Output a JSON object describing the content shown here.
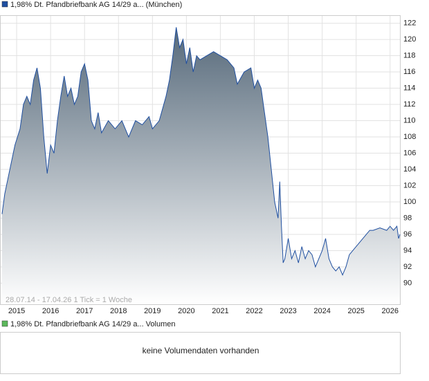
{
  "chart_data": [
    {
      "type": "area",
      "note": "28.07.14 - 17.04.26   1 Tick = 1 Woche",
      "x": [
        2014.57,
        2014.65,
        2014.8,
        2014.95,
        2015.1,
        2015.2,
        2015.3,
        2015.4,
        2015.5,
        2015.6,
        2015.7,
        2015.8,
        2015.9,
        2016.0,
        2016.1,
        2016.2,
        2016.3,
        2016.4,
        2016.5,
        2016.6,
        2016.7,
        2016.8,
        2016.9,
        2017.0,
        2017.1,
        2017.2,
        2017.3,
        2017.4,
        2017.5,
        2017.7,
        2017.9,
        2018.1,
        2018.3,
        2018.5,
        2018.7,
        2018.9,
        2019.0,
        2019.2,
        2019.4,
        2019.5,
        2019.6,
        2019.7,
        2019.8,
        2019.9,
        2020.0,
        2020.1,
        2020.2,
        2020.3,
        2020.4,
        2020.6,
        2020.8,
        2021.0,
        2021.2,
        2021.4,
        2021.5,
        2021.7,
        2021.9,
        2022.0,
        2022.1,
        2022.2,
        2022.3,
        2022.4,
        2022.5,
        2022.6,
        2022.7,
        2022.75,
        2022.8,
        2022.85,
        2022.9,
        2023.0,
        2023.1,
        2023.2,
        2023.3,
        2023.4,
        2023.5,
        2023.6,
        2023.7,
        2023.8,
        2023.9,
        2024.0,
        2024.1,
        2024.2,
        2024.3,
        2024.4,
        2024.5,
        2024.6,
        2024.7,
        2024.8,
        2024.9,
        2025.0,
        2025.1,
        2025.2,
        2025.3,
        2025.4,
        2025.5,
        2025.7,
        2025.9,
        2026.0,
        2026.1,
        2026.2,
        2026.25,
        2026.29
      ],
      "series": [
        {
          "name": "1,98% Dt. Pfandbriefbank AG 14/29 a... (München)",
          "color": "#1f4fa0",
          "values": [
            98.5,
            101,
            104,
            107,
            109,
            112,
            113,
            112,
            115,
            116.5,
            114,
            108,
            103.5,
            107,
            106,
            110,
            113,
            115.5,
            113,
            114,
            112,
            113,
            116,
            117,
            115,
            110,
            109,
            111,
            108.5,
            110,
            109,
            110,
            108,
            110,
            109.5,
            110.5,
            109,
            110,
            113,
            115,
            118,
            121.5,
            119,
            120,
            117,
            119,
            116,
            118,
            117.5,
            118,
            118.5,
            118,
            117.5,
            116.5,
            114.5,
            116,
            116.5,
            114,
            115,
            114,
            111,
            108,
            104,
            100,
            98,
            102.5,
            97,
            92.5,
            93,
            95.5,
            93,
            94,
            92.5,
            94.5,
            93,
            94,
            93.5,
            92,
            93,
            94,
            95.5,
            93,
            92,
            91.5,
            92,
            91,
            92,
            93.5,
            94,
            94.5,
            95,
            95.5,
            96,
            96.5,
            96.5,
            96.8,
            96.5,
            97,
            96.5,
            97,
            95.5,
            96
          ]
        }
      ],
      "xlim": [
        2014.53,
        2026.29
      ],
      "xticks": [
        2015,
        2016,
        2017,
        2018,
        2019,
        2020,
        2021,
        2022,
        2023,
        2024,
        2025,
        2026
      ],
      "ylim": [
        87.4,
        122.9
      ],
      "yticks": [
        90,
        92,
        94,
        96,
        98,
        100,
        102,
        104,
        106,
        108,
        110,
        112,
        114,
        116,
        118,
        120,
        122
      ],
      "grid": true
    },
    {
      "type": "volume",
      "legend_label": "1,98% Dt. Pfandbriefbank AG 14/29 a... Volumen",
      "legend_color": "#5cb85c",
      "message": "keine Volumendaten vorhanden"
    }
  ]
}
